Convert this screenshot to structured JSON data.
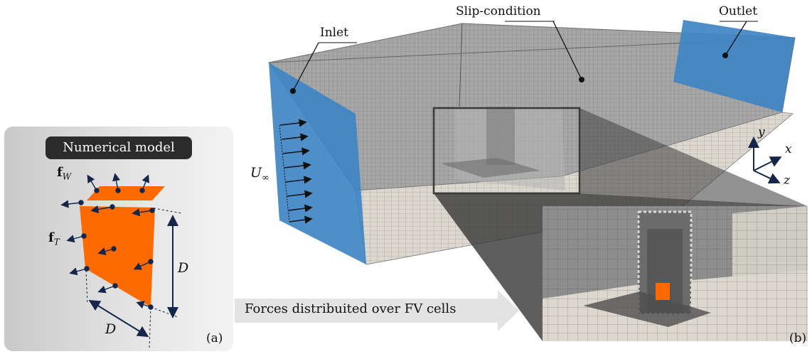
{
  "labels": {
    "inlet": "Inlet",
    "slip": "Slip-condition",
    "outlet": "Outlet",
    "u_inf_main": "U",
    "u_inf_sub": "∞",
    "model_title": "Numerical model",
    "fw_main": "f",
    "fw_sub": "W",
    "ft_main": "f",
    "ft_sub": "T",
    "d_vertical": "D",
    "d_diagonal": "D",
    "panel_a": "(a)",
    "panel_b": "(b)",
    "forces_caption": "Forces distribuited over FV cells",
    "axis_x": "x",
    "axis_y": "y",
    "axis_z": "z"
  },
  "colors": {
    "inlet_blue": "#3f86c4",
    "outlet_blue": "#3f86c4",
    "mesh_grey": "#9a9a9a",
    "floor": "#dcd8cf",
    "turbine_orange": "#ff6a00",
    "arrow_navy": "#14264a"
  }
}
